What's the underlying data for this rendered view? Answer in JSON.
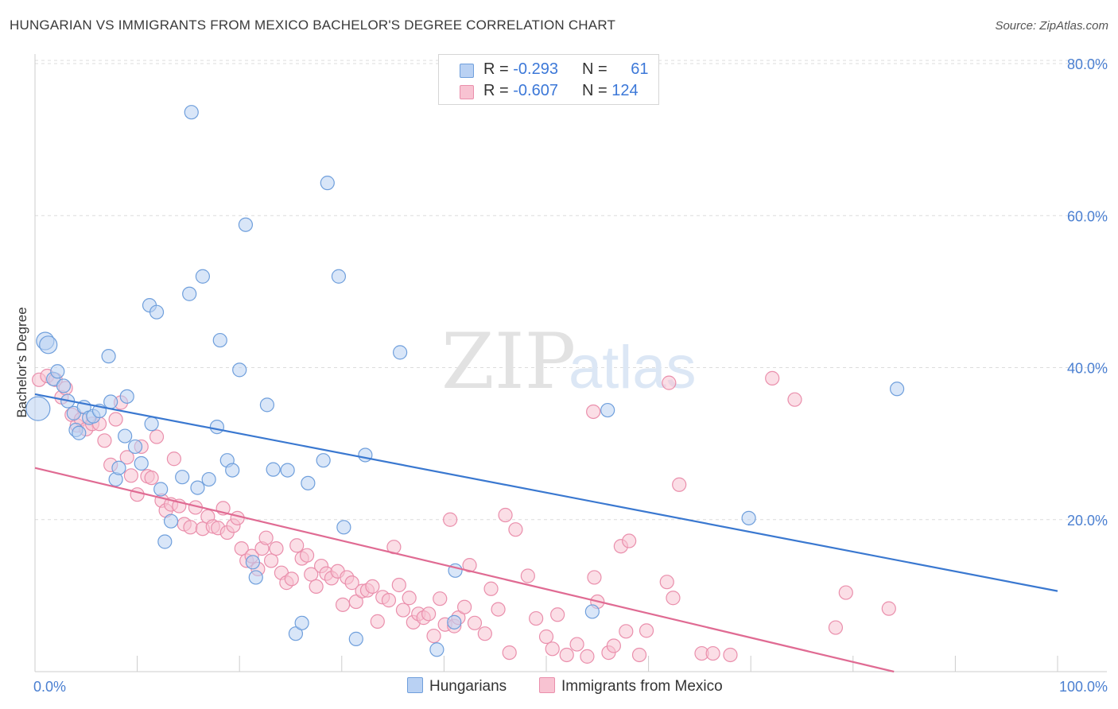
{
  "title": "HUNGARIAN VS IMMIGRANTS FROM MEXICO BACHELOR'S DEGREE CORRELATION CHART",
  "source": "Source: ZipAtlas.com",
  "watermark": {
    "zip": "ZIP",
    "atlas": "atlas"
  },
  "legend": {
    "hungarians": {
      "r_label": "R = ",
      "r_value": "-0.293",
      "n_label": "N = ",
      "n_value": "61"
    },
    "mexico": {
      "r_label": "R = ",
      "r_value": "-0.607",
      "n_label": "N = ",
      "n_value": "124"
    }
  },
  "bottom_legend": {
    "hungarians": "Hungarians",
    "mexico": "Immigrants from Mexico"
  },
  "colors": {
    "blue_fill": "#b9d1f3",
    "blue_stroke": "#6f9fdc",
    "blue_line": "#3a78d0",
    "pink_fill": "#f8c3d2",
    "pink_stroke": "#ea8fac",
    "pink_line": "#e06b93",
    "axis_label": "#4a7fd1",
    "grid": "#dcdcdc"
  },
  "chart_data": {
    "type": "scatter",
    "title": "HUNGARIAN VS IMMIGRANTS FROM MEXICO BACHELOR'S DEGREE CORRELATION CHART",
    "xlabel": "",
    "ylabel": "Bachelor's Degree",
    "xlim": [
      0,
      100
    ],
    "ylim": [
      0,
      80
    ],
    "x_tick_labels": [
      "0.0%",
      "100.0%"
    ],
    "y_ticks": [
      20,
      40,
      60,
      80
    ],
    "y_tick_labels": [
      "20.0%",
      "40.0%",
      "60.0%",
      "80.0%"
    ],
    "grid": true,
    "legend_position": "top-center",
    "series": [
      {
        "name": "Hungarians",
        "trend": {
          "x": [
            0,
            100
          ],
          "y": [
            36.5,
            10.6
          ]
        },
        "points": [
          [
            0.3,
            34.6
          ],
          [
            1.0,
            43.5
          ],
          [
            1.3,
            43.0
          ],
          [
            1.8,
            38.5
          ],
          [
            2.2,
            39.5
          ],
          [
            2.8,
            37.6
          ],
          [
            3.2,
            35.6
          ],
          [
            3.8,
            34.0
          ],
          [
            4.0,
            31.8
          ],
          [
            4.3,
            31.4
          ],
          [
            4.8,
            34.8
          ],
          [
            5.3,
            33.4
          ],
          [
            5.7,
            33.6
          ],
          [
            6.3,
            34.3
          ],
          [
            7.2,
            41.5
          ],
          [
            7.4,
            35.5
          ],
          [
            7.9,
            25.3
          ],
          [
            8.2,
            26.8
          ],
          [
            8.8,
            31.0
          ],
          [
            9.0,
            36.2
          ],
          [
            9.8,
            29.6
          ],
          [
            10.4,
            27.4
          ],
          [
            11.2,
            48.2
          ],
          [
            11.4,
            32.6
          ],
          [
            11.9,
            47.3
          ],
          [
            12.3,
            24.0
          ],
          [
            12.7,
            17.1
          ],
          [
            13.3,
            19.8
          ],
          [
            14.4,
            25.6
          ],
          [
            15.1,
            49.7
          ],
          [
            15.3,
            73.6
          ],
          [
            15.9,
            24.2
          ],
          [
            16.4,
            52.0
          ],
          [
            17.0,
            25.3
          ],
          [
            17.8,
            32.2
          ],
          [
            18.1,
            43.6
          ],
          [
            18.8,
            27.8
          ],
          [
            19.3,
            26.5
          ],
          [
            20.0,
            39.7
          ],
          [
            20.6,
            58.8
          ],
          [
            21.3,
            14.4
          ],
          [
            21.6,
            12.4
          ],
          [
            22.7,
            35.1
          ],
          [
            23.3,
            26.6
          ],
          [
            24.7,
            26.5
          ],
          [
            25.5,
            5.0
          ],
          [
            26.1,
            6.4
          ],
          [
            26.7,
            24.8
          ],
          [
            28.2,
            27.8
          ],
          [
            28.6,
            64.3
          ],
          [
            29.7,
            52.0
          ],
          [
            30.2,
            19.0
          ],
          [
            31.4,
            4.3
          ],
          [
            32.3,
            28.5
          ],
          [
            35.7,
            42.0
          ],
          [
            39.3,
            2.9
          ],
          [
            41.1,
            13.3
          ],
          [
            41.0,
            6.5
          ],
          [
            54.5,
            7.9
          ],
          [
            56.0,
            34.4
          ],
          [
            69.8,
            20.2
          ],
          [
            84.3,
            37.2
          ]
        ]
      },
      {
        "name": "Immigrants from Mexico",
        "trend": {
          "x": [
            0,
            84
          ],
          "y": [
            26.8,
            0
          ]
        },
        "points": [
          [
            0.4,
            38.4
          ],
          [
            1.2,
            38.9
          ],
          [
            2.0,
            38.4
          ],
          [
            2.6,
            36.1
          ],
          [
            3.0,
            37.3
          ],
          [
            3.6,
            33.8
          ],
          [
            4.1,
            32.4
          ],
          [
            4.5,
            33.2
          ],
          [
            5.0,
            31.9
          ],
          [
            5.6,
            32.6
          ],
          [
            6.3,
            32.6
          ],
          [
            6.8,
            30.4
          ],
          [
            7.4,
            27.2
          ],
          [
            7.9,
            33.2
          ],
          [
            8.4,
            35.4
          ],
          [
            9.0,
            28.2
          ],
          [
            9.4,
            25.8
          ],
          [
            10.0,
            23.3
          ],
          [
            10.4,
            29.6
          ],
          [
            11.0,
            25.7
          ],
          [
            11.4,
            25.5
          ],
          [
            11.9,
            30.9
          ],
          [
            12.4,
            22.5
          ],
          [
            12.8,
            21.2
          ],
          [
            13.3,
            22.0
          ],
          [
            13.6,
            28.0
          ],
          [
            14.1,
            21.8
          ],
          [
            14.6,
            19.4
          ],
          [
            15.2,
            19.0
          ],
          [
            15.7,
            21.6
          ],
          [
            16.4,
            18.8
          ],
          [
            16.9,
            20.4
          ],
          [
            17.4,
            19.1
          ],
          [
            17.9,
            18.9
          ],
          [
            18.4,
            21.5
          ],
          [
            18.8,
            18.3
          ],
          [
            19.4,
            19.2
          ],
          [
            19.8,
            20.2
          ],
          [
            20.2,
            16.2
          ],
          [
            20.7,
            14.6
          ],
          [
            21.2,
            15.2
          ],
          [
            21.8,
            13.5
          ],
          [
            22.2,
            16.2
          ],
          [
            22.6,
            17.6
          ],
          [
            23.1,
            14.6
          ],
          [
            23.6,
            16.2
          ],
          [
            24.1,
            13.0
          ],
          [
            24.6,
            11.7
          ],
          [
            25.1,
            12.2
          ],
          [
            25.6,
            16.6
          ],
          [
            26.1,
            14.9
          ],
          [
            26.6,
            15.3
          ],
          [
            27.0,
            12.8
          ],
          [
            27.5,
            11.2
          ],
          [
            28.0,
            13.9
          ],
          [
            28.5,
            12.9
          ],
          [
            29.0,
            12.3
          ],
          [
            29.6,
            13.2
          ],
          [
            30.1,
            8.8
          ],
          [
            30.5,
            12.4
          ],
          [
            31.0,
            11.7
          ],
          [
            31.4,
            9.2
          ],
          [
            32.0,
            10.6
          ],
          [
            32.5,
            10.7
          ],
          [
            33.0,
            11.2
          ],
          [
            33.5,
            6.6
          ],
          [
            34.0,
            9.8
          ],
          [
            34.6,
            9.4
          ],
          [
            35.1,
            16.4
          ],
          [
            35.6,
            11.4
          ],
          [
            36.0,
            8.1
          ],
          [
            36.6,
            9.7
          ],
          [
            37.0,
            6.5
          ],
          [
            37.5,
            7.6
          ],
          [
            38.0,
            7.1
          ],
          [
            38.5,
            7.6
          ],
          [
            39.0,
            4.7
          ],
          [
            39.6,
            9.6
          ],
          [
            40.1,
            6.2
          ],
          [
            40.6,
            20.0
          ],
          [
            41.0,
            6.0
          ],
          [
            41.4,
            7.1
          ],
          [
            42.0,
            8.5
          ],
          [
            42.5,
            14.0
          ],
          [
            43.0,
            6.4
          ],
          [
            44.0,
            5.0
          ],
          [
            44.6,
            10.9
          ],
          [
            45.3,
            8.2
          ],
          [
            46.0,
            20.6
          ],
          [
            46.4,
            2.5
          ],
          [
            47.0,
            18.7
          ],
          [
            48.2,
            12.6
          ],
          [
            49.0,
            7.0
          ],
          [
            50.0,
            4.6
          ],
          [
            50.6,
            3.0
          ],
          [
            51.1,
            7.5
          ],
          [
            52.0,
            2.2
          ],
          [
            53.0,
            3.6
          ],
          [
            54.0,
            2.0
          ],
          [
            54.7,
            12.4
          ],
          [
            54.6,
            34.2
          ],
          [
            55.0,
            9.2
          ],
          [
            56.1,
            2.5
          ],
          [
            56.6,
            3.4
          ],
          [
            57.3,
            16.5
          ],
          [
            57.8,
            5.3
          ],
          [
            58.1,
            17.2
          ],
          [
            59.1,
            2.2
          ],
          [
            59.8,
            5.4
          ],
          [
            61.8,
            11.8
          ],
          [
            62.4,
            9.7
          ],
          [
            63.0,
            24.6
          ],
          [
            65.2,
            2.4
          ],
          [
            66.3,
            2.4
          ],
          [
            68.0,
            2.2
          ],
          [
            72.1,
            38.6
          ],
          [
            74.3,
            35.8
          ],
          [
            78.3,
            5.8
          ],
          [
            79.3,
            10.4
          ],
          [
            83.5,
            8.3
          ],
          [
            62.0,
            38.0
          ]
        ]
      }
    ]
  }
}
